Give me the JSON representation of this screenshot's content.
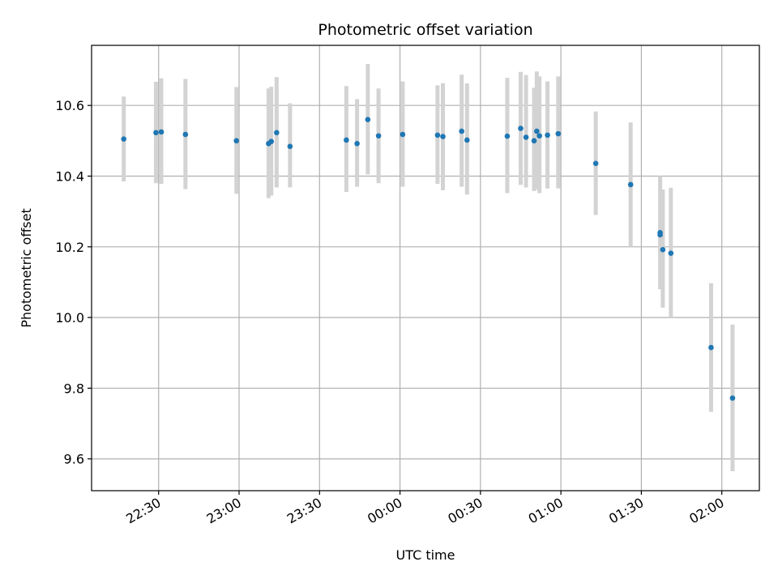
{
  "chart_data": {
    "type": "scatter",
    "title": "Photometric offset variation",
    "xlabel": "UTC time",
    "ylabel": "Photometric offset",
    "x_ticks": [
      "22:30",
      "23:00",
      "23:30",
      "00:00",
      "00:30",
      "01:00",
      "01:30",
      "02:00"
    ],
    "y_ticks": [
      "9.6",
      "9.8",
      "10.0",
      "10.2",
      "10.4",
      "10.6"
    ],
    "ylim": [
      9.51,
      10.77
    ],
    "xlim": [
      "22:05",
      "02:14"
    ],
    "grid": true,
    "colors": {
      "points": "#1f77b4",
      "error_bars": "#d3d3d3",
      "grid": "#b0b0b0"
    },
    "points": [
      {
        "t": "22:17",
        "y": 10.505,
        "lo": 10.385,
        "hi": 10.625
      },
      {
        "t": "22:29",
        "y": 10.523,
        "lo": 10.38,
        "hi": 10.667
      },
      {
        "t": "22:31",
        "y": 10.525,
        "lo": 10.378,
        "hi": 10.677
      },
      {
        "t": "22:40",
        "y": 10.518,
        "lo": 10.363,
        "hi": 10.675
      },
      {
        "t": "22:59",
        "y": 10.5,
        "lo": 10.35,
        "hi": 10.652
      },
      {
        "t": "23:11",
        "y": 10.492,
        "lo": 10.338,
        "hi": 10.648
      },
      {
        "t": "23:12",
        "y": 10.498,
        "lo": 10.345,
        "hi": 10.653
      },
      {
        "t": "23:14",
        "y": 10.523,
        "lo": 10.368,
        "hi": 10.68
      },
      {
        "t": "23:19",
        "y": 10.484,
        "lo": 10.368,
        "hi": 10.606
      },
      {
        "t": "23:40",
        "y": 10.502,
        "lo": 10.355,
        "hi": 10.655
      },
      {
        "t": "23:44",
        "y": 10.492,
        "lo": 10.37,
        "hi": 10.618
      },
      {
        "t": "23:48",
        "y": 10.56,
        "lo": 10.405,
        "hi": 10.717
      },
      {
        "t": "23:52",
        "y": 10.514,
        "lo": 10.38,
        "hi": 10.648
      },
      {
        "t": "00:01",
        "y": 10.518,
        "lo": 10.37,
        "hi": 10.668
      },
      {
        "t": "00:14",
        "y": 10.516,
        "lo": 10.378,
        "hi": 10.657
      },
      {
        "t": "00:16",
        "y": 10.512,
        "lo": 10.36,
        "hi": 10.663
      },
      {
        "t": "00:23",
        "y": 10.527,
        "lo": 10.37,
        "hi": 10.687
      },
      {
        "t": "00:25",
        "y": 10.502,
        "lo": 10.348,
        "hi": 10.662
      },
      {
        "t": "00:40",
        "y": 10.513,
        "lo": 10.352,
        "hi": 10.678
      },
      {
        "t": "00:45",
        "y": 10.535,
        "lo": 10.375,
        "hi": 10.695
      },
      {
        "t": "00:47",
        "y": 10.51,
        "lo": 10.368,
        "hi": 10.686
      },
      {
        "t": "00:50",
        "y": 10.5,
        "lo": 10.358,
        "hi": 10.65
      },
      {
        "t": "00:51",
        "y": 10.527,
        "lo": 10.362,
        "hi": 10.696
      },
      {
        "t": "00:52",
        "y": 10.514,
        "lo": 10.352,
        "hi": 10.682
      },
      {
        "t": "00:55",
        "y": 10.516,
        "lo": 10.365,
        "hi": 10.668
      },
      {
        "t": "00:59",
        "y": 10.52,
        "lo": 10.365,
        "hi": 10.682
      },
      {
        "t": "01:13",
        "y": 10.436,
        "lo": 10.29,
        "hi": 10.583
      },
      {
        "t": "01:26",
        "y": 10.376,
        "lo": 10.2,
        "hi": 10.552
      },
      {
        "t": "01:37",
        "y": 10.234,
        "lo": 10.08,
        "hi": 10.393
      },
      {
        "t": "01:37",
        "y": 10.24,
        "lo": 10.085,
        "hi": 10.4
      },
      {
        "t": "01:38",
        "y": 10.192,
        "lo": 10.028,
        "hi": 10.362
      },
      {
        "t": "01:41",
        "y": 10.182,
        "lo": 10.0,
        "hi": 10.367
      },
      {
        "t": "01:56",
        "y": 9.915,
        "lo": 9.733,
        "hi": 10.097
      },
      {
        "t": "02:04",
        "y": 9.772,
        "lo": 9.565,
        "hi": 9.98
      }
    ]
  }
}
